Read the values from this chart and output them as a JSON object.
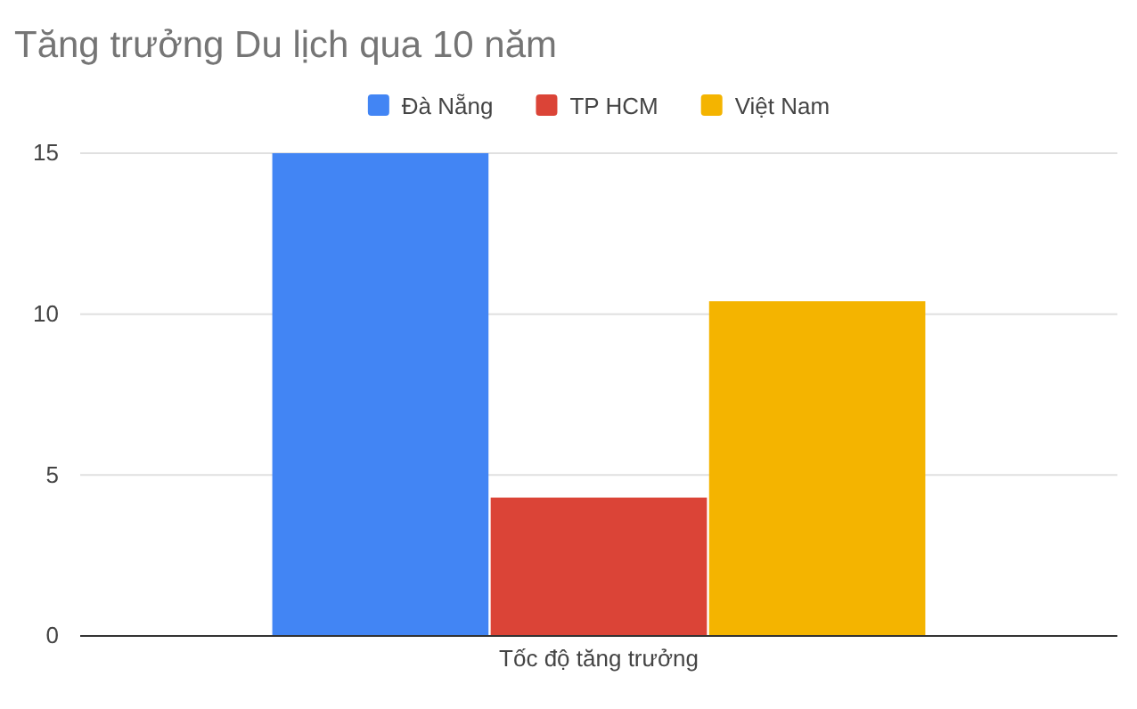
{
  "chart_data": {
    "type": "bar",
    "title": "Tăng trưởng Du lịch qua 10 năm",
    "categories": [
      "Tốc độ tăng trưởng"
    ],
    "series": [
      {
        "name": "Đà Nẵng",
        "color": "#4285f4",
        "values": [
          15
        ]
      },
      {
        "name": "TP HCM",
        "color": "#db4437",
        "values": [
          4.3
        ]
      },
      {
        "name": "Việt Nam",
        "color": "#f4b400",
        "values": [
          10.4
        ]
      }
    ],
    "ylim": [
      0,
      15
    ],
    "yticks": [
      0,
      5,
      10,
      15
    ],
    "grid": "y",
    "legend": "top"
  }
}
